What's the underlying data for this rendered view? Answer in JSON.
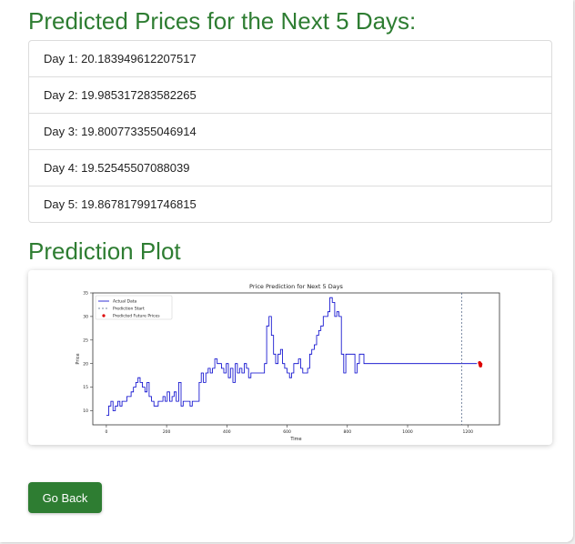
{
  "page": {
    "title": "Predicted Prices for the Next 5 Days:",
    "predictions": [
      {
        "label": "Day 1: 20.183949612207517"
      },
      {
        "label": "Day 2: 19.985317283582265"
      },
      {
        "label": "Day 3: 19.800773355046914"
      },
      {
        "label": "Day 4: 19.52545507088039"
      },
      {
        "label": "Day 5: 19.867817991746815"
      }
    ],
    "plot_heading": "Prediction Plot",
    "go_back_label": "Go Back"
  },
  "colors": {
    "heading_green": "#2e7d32",
    "button_green": "#2e7d32",
    "actual_line": "#0000cc",
    "prediction_start": "#4a6080",
    "predicted_points": "#dd0000"
  },
  "chart_data": {
    "type": "line",
    "title": "Price Prediction for Next 5 Days",
    "xlabel": "Time",
    "ylabel": "Price",
    "xlim": [
      -45,
      1305
    ],
    "ylim": [
      7,
      35
    ],
    "x_ticks": [
      0,
      200,
      400,
      600,
      800,
      1000,
      1200
    ],
    "y_ticks": [
      10,
      15,
      20,
      25,
      30,
      35
    ],
    "grid": false,
    "legend": {
      "position": "top-left",
      "entries": [
        "Actual Data",
        "Prediction Start",
        "Predicted Future Prices"
      ]
    },
    "series": [
      {
        "name": "Actual Data",
        "style": "line",
        "x": [
          0,
          8,
          15,
          22,
          30,
          38,
          45,
          52,
          60,
          68,
          75,
          82,
          90,
          98,
          105,
          112,
          120,
          128,
          135,
          142,
          150,
          158,
          165,
          172,
          180,
          188,
          195,
          202,
          210,
          218,
          225,
          232,
          240,
          248,
          255,
          262,
          270,
          278,
          285,
          292,
          300,
          308,
          315,
          322,
          330,
          338,
          345,
          352,
          360,
          368,
          375,
          382,
          390,
          398,
          405,
          412,
          420,
          428,
          435,
          442,
          450,
          458,
          465,
          472,
          480,
          488,
          495,
          502,
          510,
          518,
          525,
          532,
          540,
          548,
          555,
          562,
          570,
          578,
          585,
          592,
          600,
          608,
          615,
          622,
          630,
          638,
          645,
          652,
          660,
          668,
          675,
          682,
          690,
          698,
          705,
          712,
          720,
          728,
          735,
          742,
          750,
          758,
          765,
          772,
          780,
          788,
          795,
          802,
          810,
          818,
          825,
          832,
          840,
          848,
          855,
          862,
          870,
          878,
          885,
          892,
          900,
          908,
          915,
          922,
          930,
          938,
          945,
          952,
          960,
          968,
          975,
          982,
          990,
          998,
          1005,
          1012,
          1020,
          1028,
          1035,
          1042,
          1050,
          1058,
          1065,
          1072,
          1080,
          1088,
          1095,
          1102,
          1110,
          1118,
          1125,
          1132,
          1140,
          1148,
          1155,
          1162,
          1170,
          1178,
          1185,
          1192,
          1200,
          1208,
          1215,
          1222,
          1230
        ],
        "y": [
          9,
          11,
          12,
          10,
          11,
          12,
          11,
          12,
          12,
          13,
          13,
          14,
          15,
          16,
          17,
          16,
          15,
          14,
          16,
          13,
          12,
          11,
          11,
          12,
          12,
          13,
          12,
          14,
          12,
          13,
          14,
          12,
          16,
          11,
          12,
          12,
          12,
          11,
          12,
          12,
          12,
          16,
          18,
          16,
          18,
          19,
          18,
          19,
          21,
          20,
          20,
          19,
          18,
          20,
          17,
          19,
          16,
          20,
          18,
          19,
          18,
          20,
          19,
          17,
          18,
          18,
          18,
          18,
          18,
          18,
          20,
          28,
          30,
          26,
          22,
          20,
          22,
          23,
          20,
          19,
          18,
          17,
          18,
          20,
          20,
          21,
          19,
          18,
          18,
          19,
          22,
          23,
          24,
          26,
          27,
          28,
          30,
          30,
          31,
          34,
          33,
          30,
          31,
          30,
          22,
          18,
          22,
          22,
          22,
          22,
          18,
          20,
          22,
          22,
          20,
          20,
          20,
          20,
          20,
          20,
          20,
          20,
          20,
          20,
          20,
          20,
          20,
          20,
          20,
          20,
          20,
          20,
          20,
          20,
          20,
          20,
          20,
          20,
          20,
          20,
          20,
          20,
          20,
          20,
          20,
          20,
          20,
          20,
          20,
          20,
          20,
          20,
          20,
          20,
          20,
          20,
          20,
          20,
          20,
          20,
          20,
          20,
          20,
          20,
          20
        ]
      },
      {
        "name": "Prediction Start",
        "style": "dashed-vertical",
        "x": [
          1180
        ]
      },
      {
        "name": "Predicted Future Prices",
        "style": "scatter",
        "x": [
          1239,
          1240,
          1241,
          1242,
          1243
        ],
        "y": [
          20.18,
          19.99,
          19.8,
          19.53,
          19.87
        ]
      }
    ]
  }
}
